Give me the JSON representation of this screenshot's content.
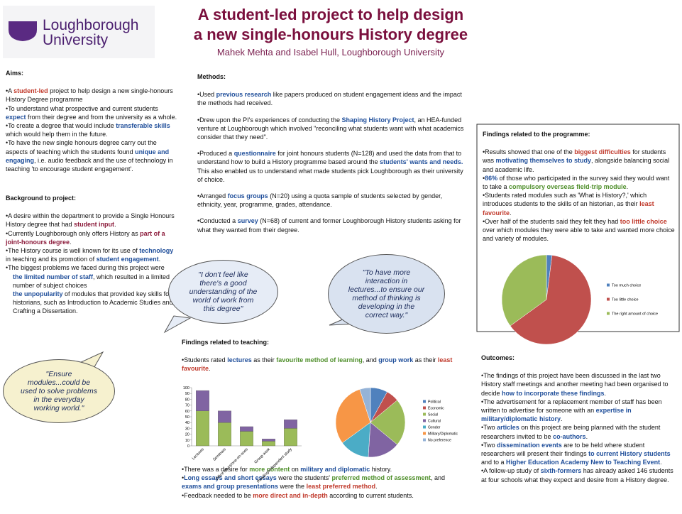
{
  "logo": {
    "line1": "Loughborough",
    "line2": "University"
  },
  "header": {
    "title_line1": "A student-led project to help design",
    "title_line2": "a new single-honours History degree",
    "authors": "Mahek Mehta and Isabel Hull, Loughborough University"
  },
  "aims": {
    "heading": "Aims:",
    "paragraphs": [
      [
        "•A ",
        {
          "text": "student-led",
          "color": "#c0392b"
        },
        " project to help design a new single-honours History Degree programme"
      ],
      [
        "•To understand what prospective and current students ",
        {
          "text": "expect",
          "color": "#1f4e9a"
        },
        " from their degree and from the university as a whole."
      ],
      [
        "•To create a degree that would include ",
        {
          "text": "transferable skills",
          "color": "#1f4e9a"
        },
        " which would help them in the future."
      ],
      [
        "•To have the new single honours degree carry out the aspects of teaching which the students found ",
        {
          "text": "unique and engaging",
          "color": "#1f4e9a"
        },
        ", i.e. audio feedback and the use of technology in teaching 'to encourage student engagement'."
      ]
    ]
  },
  "background": {
    "heading": "Background to project:",
    "paragraphs": [
      [
        "•A desire within the department to provide a Single Honours History degree that had ",
        {
          "text": "student input",
          "color": "#8b1a3a"
        },
        "."
      ],
      [
        "•Currently Loughborough only offers History as ",
        {
          "text": "part of a joint-honours degree",
          "color": "#8b1a3a"
        },
        "."
      ],
      [
        "•The History course is well known for its use of ",
        {
          "text": "technology",
          "color": "#1f4e9a"
        },
        " in teaching and its promotion of ",
        {
          "text": "student engagement",
          "color": "#1f4e9a"
        },
        "."
      ],
      [
        "•The biggest problems we faced during this project were"
      ],
      [
        {
          "text": "the limited number of staff",
          "color": "#1f4e9a"
        },
        ", which resulted in a limited number of subject choices"
      ],
      [
        {
          "text": "the unpopularity",
          "color": "#1f4e9a"
        },
        " of modules that provided key skills for historians, such as Introduction to Academic Studies and Crafting a Dissertation."
      ]
    ]
  },
  "methods": {
    "heading": "Methods:",
    "paragraphs": [
      [
        "•Used ",
        {
          "text": "previous research",
          "color": "#1f4e9a"
        },
        " like papers produced on student engagement ideas and the impact the methods had received."
      ],
      [
        "•Drew upon the PI's experiences of conducting the ",
        {
          "text": "Shaping History Project",
          "color": "#1f4e9a"
        },
        ", an HEA-funded venture at Loughborough which involved \"reconciling what students want with what academics consider that they need\"."
      ],
      [
        "•Produced a ",
        {
          "text": "questionnaire",
          "color": "#1f4e9a"
        },
        " for joint honours students (N=128) and used the data from that to understand how to build a History programme based around the ",
        {
          "text": "students' wants and needs.",
          "color": "#1f4e9a"
        },
        " This also enabled us to understand what made students pick Loughborough as their university of choice."
      ],
      [
        "•Arranged ",
        {
          "text": "focus groups",
          "color": "#1f4e9a"
        },
        " (N=20) using a quota sample of students selected by gender, ethnicity, year, programme, grades, attendance."
      ],
      [
        "•Conducted a ",
        {
          "text": "survey",
          "color": "#1f4e9a"
        },
        " (N=68) of current and former Loughborough History students asking for what they wanted from their degree."
      ]
    ]
  },
  "quotes": [
    "\"I don't feel like there's a good understanding of the world of work from this degree\"",
    "\"To have more interaction in lectures...to ensure our method of thinking is developing in the correct way.\"",
    "\"Ensure modules...could be used to solve problems in the everyday working world.\""
  ],
  "findings_programme": {
    "heading": "Findings related to the programme:",
    "paragraphs": [
      [
        "•Results showed that one of the ",
        {
          "text": "biggest difficulties",
          "color": "#c0392b"
        },
        " for students was ",
        {
          "text": "motivating themselves to study",
          "color": "#1f4e9a"
        },
        ", alongside balancing social and academic life."
      ],
      [
        "•",
        {
          "text": "86%",
          "color": "#1f4e9a"
        },
        " of those who participated in the survey said they would want to take a ",
        {
          "text": "compulsory overseas field-trip module",
          "color": "#4f8f2b"
        },
        "."
      ],
      [
        "•Students rated modules such as 'What is History?,' which introduces students to the skills of an historian, as their ",
        {
          "text": "least favourite",
          "color": "#c0392b"
        },
        "."
      ],
      [
        "•Over half of the students said they felt they had ",
        {
          "text": "too little choice",
          "color": "#c0392b"
        },
        " over which modules they were able to take and wanted more choice and variety of modules."
      ]
    ]
  },
  "findings_teaching": {
    "heading": "Findings related to teaching:",
    "intro": [
      [
        "•Students rated ",
        {
          "text": "lectures",
          "color": "#1f4e9a"
        },
        " as their ",
        {
          "text": "favourite method of learning",
          "color": "#4f8f2b"
        },
        ", and ",
        {
          "text": "group work",
          "color": "#1f4e9a"
        },
        " as their ",
        {
          "text": "least favourite",
          "color": "#c0392b"
        },
        "."
      ]
    ],
    "paragraphs": [
      [
        "•There was a desire for ",
        {
          "text": "more content",
          "color": "#4f8f2b"
        },
        " on ",
        {
          "text": "military and diplomatic",
          "color": "#1f4e9a"
        },
        " history."
      ],
      [
        "•",
        {
          "text": "Long essays and short essays",
          "color": "#1f4e9a"
        },
        " were the students' ",
        {
          "text": "preferred method of assessment",
          "color": "#4f8f2b"
        },
        ", and ",
        {
          "text": "exams and group presentations",
          "color": "#1f4e9a"
        },
        " were the ",
        {
          "text": "least preferred method",
          "color": "#c0392b"
        },
        "."
      ],
      [
        "•Feedback needed to be ",
        {
          "text": "more direct and in-depth",
          "color": "#c0392b"
        },
        " according to current students."
      ]
    ]
  },
  "outcomes": {
    "heading": "Outcomes:",
    "paragraphs": [
      [
        "•The findings of this project have been discussed in the last two History staff meetings and another meeting had been organised to decide ",
        {
          "text": "how to incorporate these findings",
          "color": "#1f4e9a"
        },
        "."
      ],
      [
        "•The advertisement for a replacement member of staff has been written to advertise for someone with an ",
        {
          "text": "expertise in military/diplomatic history",
          "color": "#1f4e9a"
        },
        "."
      ],
      [
        "•Two ",
        {
          "text": "articles",
          "color": "#1f4e9a"
        },
        " on this project are being planned with the student researchers invited to be ",
        {
          "text": "co-authors",
          "color": "#1f4e9a"
        },
        "."
      ],
      [
        "•Two ",
        {
          "text": "dissemination events",
          "color": "#1f4e9a"
        },
        " are to be held where student researchers will present their findings ",
        {
          "text": "to current History students",
          "color": "#1f4e9a"
        },
        " and to a ",
        {
          "text": "Higher Education Academy New to Teaching Event",
          "color": "#1f4e9a"
        },
        "."
      ],
      [
        "•A follow-up study of ",
        {
          "text": "sixth-formers",
          "color": "#1f4e9a"
        },
        " has already asked 146 students at four schools what they expect and desire from a History degree."
      ]
    ]
  },
  "chart_data": [
    {
      "type": "bar",
      "stacked": true,
      "categories": [
        "Lectures",
        "Seminars",
        "Office hours/one-on-ones",
        "Group work",
        "Reading/independent study"
      ],
      "series": [
        {
          "color": "#9bbb59",
          "values": [
            60,
            40,
            25,
            8,
            30
          ]
        },
        {
          "color": "#8064a2",
          "values": [
            35,
            20,
            8,
            4,
            15
          ]
        }
      ],
      "ylim": [
        0,
        100
      ],
      "yticks": [
        0,
        10,
        20,
        30,
        40,
        50,
        60,
        70,
        80,
        90,
        100
      ]
    },
    {
      "type": "pie",
      "categories": [
        "Too much choice",
        "Too little choice",
        "The right amount of choice"
      ],
      "values": [
        2,
        63,
        35
      ],
      "colors": [
        "#4f81bd",
        "#c0504d",
        "#9bbb59"
      ],
      "legend": "right"
    },
    {
      "type": "pie",
      "categories": [
        "Political",
        "Economic",
        "Social",
        "Cultural",
        "Gender",
        "Military/Diplomatic",
        "No preference"
      ],
      "values": [
        8,
        6,
        22,
        15,
        14,
        30,
        5
      ],
      "colors": [
        "#4f81bd",
        "#c0504d",
        "#9bbb59",
        "#8064a2",
        "#4bacc6",
        "#f79646",
        "#95b3d7"
      ],
      "legend": "right"
    }
  ]
}
